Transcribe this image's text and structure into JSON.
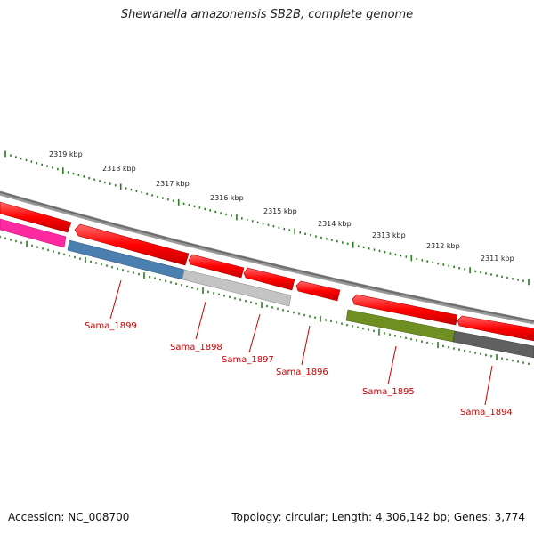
{
  "title": "Shewanella amazonensis SB2B, complete genome",
  "footer": {
    "accession": "Accession: NC_008700",
    "stats": "Topology: circular; Length: 4,306,142 bp; Genes: 3,774"
  },
  "colors": {
    "backbone": "#7d7d7d",
    "forward_tick": "#2a7d1f",
    "reverse_tick": "#2a7d1f",
    "gene_red": "#ff0000",
    "gene_pink": "#ff1a9a",
    "gene_blue": "#4a7fb0",
    "gene_lightgray": "#bdbdbd",
    "gene_olive": "#6a8c20",
    "gene_darkgray": "#5e5e5e",
    "label_red": "#cc0000"
  },
  "scale_labels": [
    "2319 kbp",
    "2318 kbp",
    "2317 kbp",
    "2316 kbp",
    "2315 kbp",
    "2314 kbp",
    "2313 kbp",
    "2312 kbp",
    "2311 kbp"
  ],
  "gene_labels": [
    "Sama_1899",
    "Sama_1898",
    "Sama_1897",
    "Sama_1896",
    "Sama_1895",
    "Sama_1894"
  ]
}
